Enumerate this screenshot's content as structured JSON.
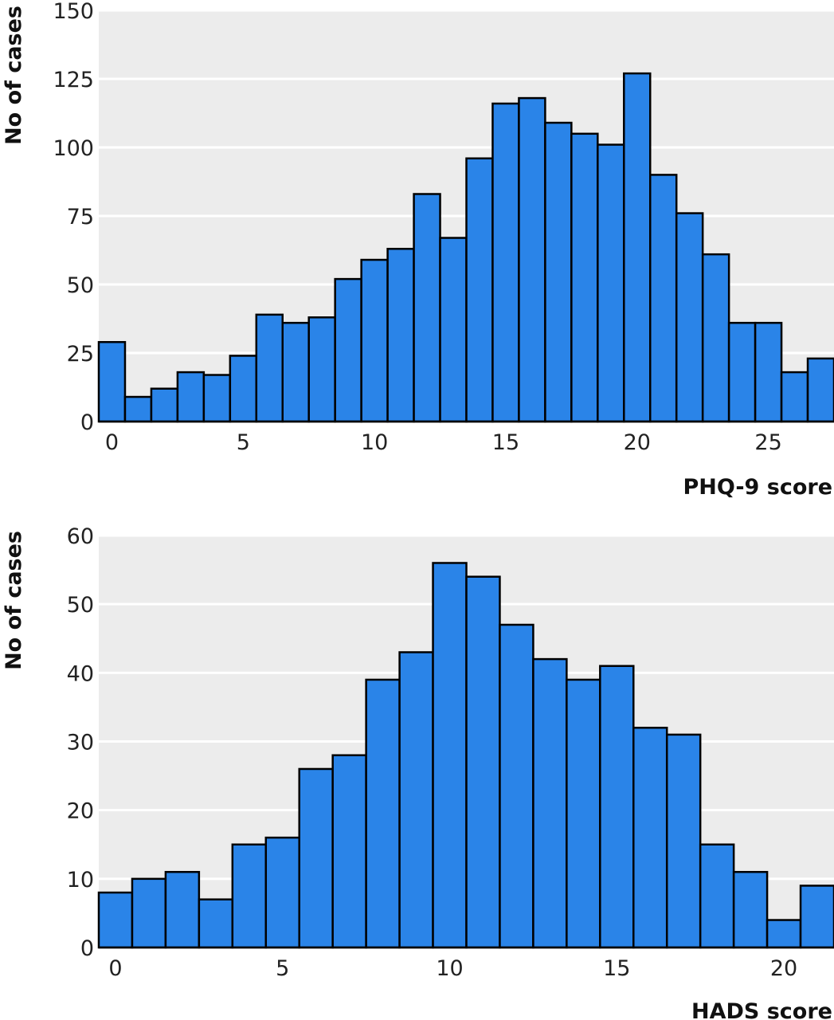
{
  "colors": {
    "bar_fill": "#2a84e8",
    "bar_stroke": "#000000",
    "plot_background": "#ececec",
    "gridline": "#ffffff"
  },
  "chart_data": [
    {
      "type": "bar",
      "xlabel": "PHQ-9 score",
      "ylabel": "No of cases",
      "x": [
        0,
        1,
        2,
        3,
        4,
        5,
        6,
        7,
        8,
        9,
        10,
        11,
        12,
        13,
        14,
        15,
        16,
        17,
        18,
        19,
        20,
        21,
        22,
        23,
        24,
        25,
        26,
        27
      ],
      "values": [
        29,
        9,
        12,
        18,
        17,
        24,
        39,
        36,
        38,
        52,
        59,
        63,
        83,
        67,
        96,
        116,
        118,
        109,
        105,
        101,
        127,
        90,
        76,
        61,
        36,
        36,
        18,
        23
      ],
      "xlim": [
        -0.5,
        27.5
      ],
      "xticks": [
        0,
        5,
        10,
        15,
        20,
        25
      ],
      "ylim": [
        0,
        150
      ],
      "yticks": [
        0,
        25,
        50,
        75,
        100,
        125,
        150
      ],
      "grid": true
    },
    {
      "type": "bar",
      "xlabel": "HADS score",
      "ylabel": "No of cases",
      "x": [
        0,
        1,
        2,
        3,
        4,
        5,
        6,
        7,
        8,
        9,
        10,
        11,
        12,
        13,
        14,
        15,
        16,
        17,
        18,
        19,
        20,
        21
      ],
      "values": [
        8,
        10,
        11,
        7,
        15,
        16,
        26,
        28,
        39,
        43,
        56,
        54,
        47,
        42,
        39,
        41,
        32,
        31,
        15,
        11,
        4,
        9
      ],
      "xlim": [
        -0.5,
        21.5
      ],
      "xticks": [
        0,
        5,
        10,
        15,
        20
      ],
      "ylim": [
        0,
        60
      ],
      "yticks": [
        0,
        10,
        20,
        30,
        40,
        50,
        60
      ],
      "grid": true
    }
  ]
}
